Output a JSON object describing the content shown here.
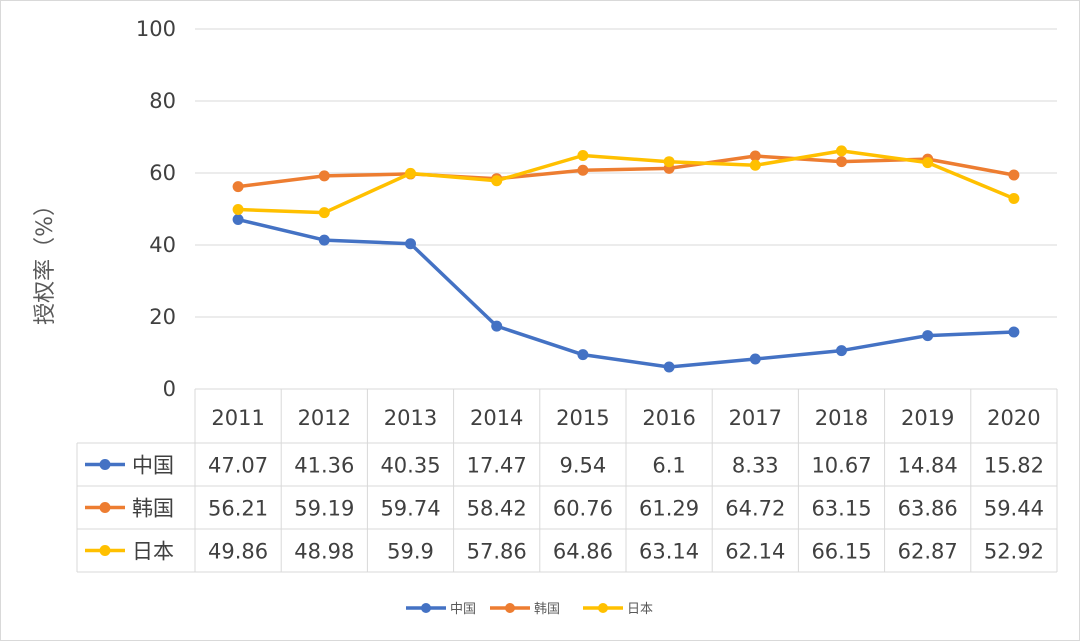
{
  "chart_data": {
    "type": "line",
    "categories": [
      "2011",
      "2012",
      "2013",
      "2014",
      "2015",
      "2016",
      "2017",
      "2018",
      "2019",
      "2020"
    ],
    "series": [
      {
        "name": "中国",
        "color": "#4472C4",
        "values": [
          47.07,
          41.36,
          40.35,
          17.47,
          9.54,
          6.1,
          8.33,
          10.67,
          14.84,
          15.82
        ],
        "labels": [
          "47.07",
          "41.36",
          "40.35",
          "17.47",
          "9.54",
          "6.1",
          "8.33",
          "10.67",
          "14.84",
          "15.82"
        ]
      },
      {
        "name": "韩国",
        "color": "#ED7D31",
        "values": [
          56.21,
          59.19,
          59.74,
          58.42,
          60.76,
          61.29,
          64.72,
          63.15,
          63.86,
          59.44
        ],
        "labels": [
          "56.21",
          "59.19",
          "59.74",
          "58.42",
          "60.76",
          "61.29",
          "64.72",
          "63.15",
          "63.86",
          "59.44"
        ]
      },
      {
        "name": "日本",
        "color": "#FFC000",
        "values": [
          49.86,
          48.98,
          59.9,
          57.86,
          64.86,
          63.14,
          62.14,
          66.15,
          62.87,
          52.92
        ],
        "labels": [
          "49.86",
          "48.98",
          "59.9",
          "57.86",
          "64.86",
          "63.14",
          "62.14",
          "66.15",
          "62.87",
          "52.92"
        ]
      }
    ],
    "ylabel": "授权率（%）",
    "ylim": [
      0,
      100
    ],
    "yticks": [
      0,
      20,
      40,
      60,
      80,
      100
    ],
    "ytick_labels": [
      "0",
      "20",
      "40",
      "60",
      "80",
      "100"
    ],
    "grid": true,
    "data_table": true,
    "legend": "bottom"
  }
}
